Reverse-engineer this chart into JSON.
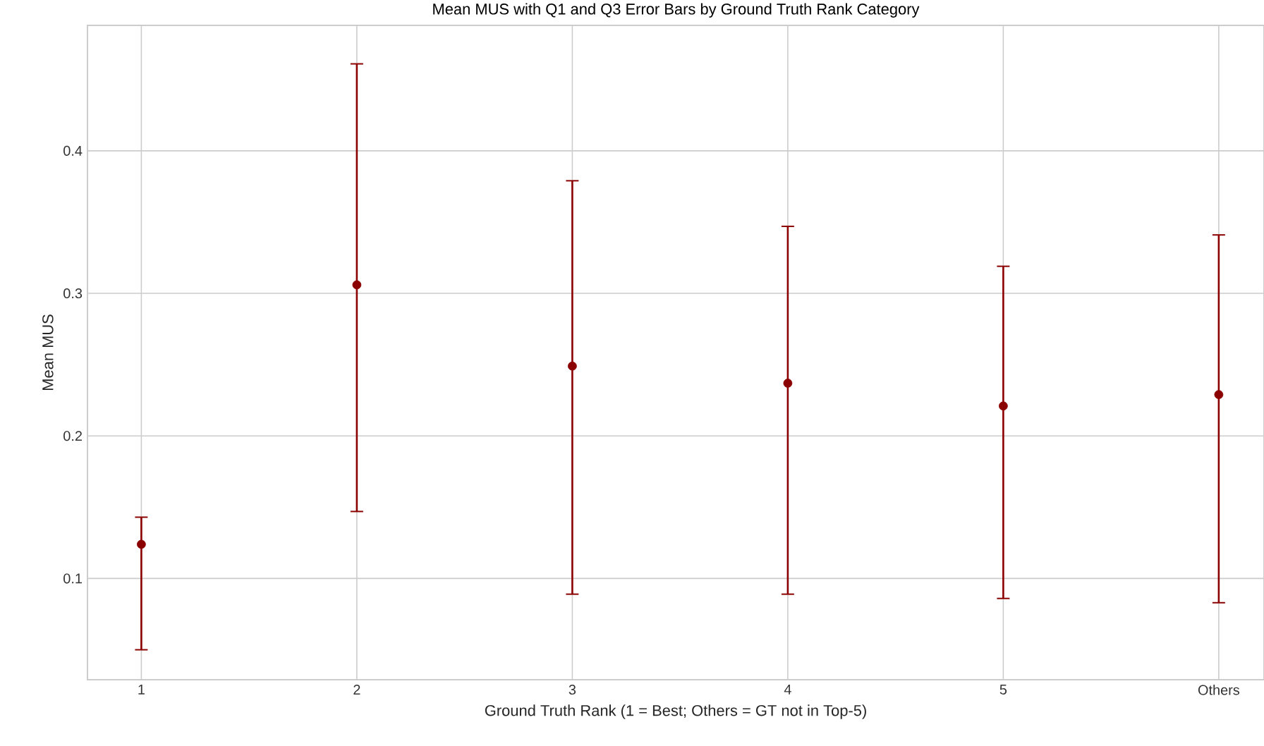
{
  "chart_data": {
    "type": "scatter",
    "title": "Mean MUS with Q1 and Q3 Error Bars by Ground Truth Rank Category",
    "xlabel": "Ground Truth Rank (1 = Best; Others = GT not in Top-5)",
    "ylabel": "Mean MUS",
    "categories": [
      "1",
      "2",
      "3",
      "4",
      "5",
      "Others"
    ],
    "values": [
      0.124,
      0.306,
      0.249,
      0.237,
      0.221,
      0.229
    ],
    "errors": [
      [
        0.05,
        0.143
      ],
      [
        0.147,
        0.461
      ],
      [
        0.089,
        0.379
      ],
      [
        0.089,
        0.347
      ],
      [
        0.086,
        0.319
      ],
      [
        0.083,
        0.341
      ]
    ],
    "color": "#8b0000",
    "ylim": [
      0.029,
      0.488
    ],
    "yticks": [
      0.1,
      0.2,
      0.3,
      0.4
    ],
    "grid": true
  }
}
